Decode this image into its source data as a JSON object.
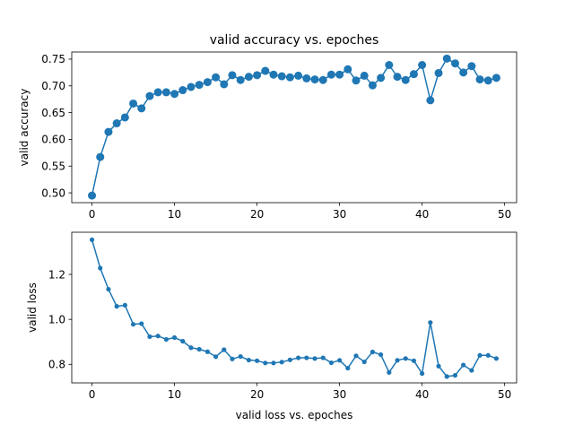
{
  "chart_data": [
    {
      "type": "line",
      "title": "valid accuracy vs. epoches",
      "xlabel": "",
      "ylabel": "valid accuracy",
      "xlim": [
        -2.45,
        51.45
      ],
      "ylim": [
        0.4817,
        0.7633
      ],
      "xticks": [
        0,
        10,
        20,
        30,
        40,
        50
      ],
      "yticks": [
        0.5,
        0.55,
        0.6,
        0.65,
        0.7,
        0.75
      ],
      "ytick_labels": [
        "0.50",
        "0.55",
        "0.60",
        "0.65",
        "0.70",
        "0.75"
      ],
      "color": "#1f77b4",
      "marker": "circle-large",
      "x": [
        0,
        1,
        2,
        3,
        4,
        5,
        6,
        7,
        8,
        9,
        10,
        11,
        12,
        13,
        14,
        15,
        16,
        17,
        18,
        19,
        20,
        21,
        22,
        23,
        24,
        25,
        26,
        27,
        28,
        29,
        30,
        31,
        32,
        33,
        34,
        35,
        36,
        37,
        38,
        39,
        40,
        41,
        42,
        43,
        44,
        45,
        46,
        47,
        48,
        49
      ],
      "values": [
        0.495,
        0.567,
        0.614,
        0.63,
        0.641,
        0.667,
        0.658,
        0.681,
        0.688,
        0.688,
        0.685,
        0.692,
        0.698,
        0.702,
        0.707,
        0.716,
        0.703,
        0.72,
        0.711,
        0.717,
        0.72,
        0.728,
        0.721,
        0.718,
        0.716,
        0.719,
        0.714,
        0.712,
        0.711,
        0.721,
        0.721,
        0.731,
        0.71,
        0.719,
        0.701,
        0.715,
        0.739,
        0.717,
        0.711,
        0.722,
        0.739,
        0.673,
        0.724,
        0.751,
        0.742,
        0.725,
        0.737,
        0.712,
        0.71,
        0.715
      ]
    },
    {
      "type": "line",
      "title": "",
      "xlabel": "valid loss vs. epoches",
      "ylabel": "valid loss",
      "xlim": [
        -2.45,
        51.45
      ],
      "ylim": [
        0.7175,
        1.3875
      ],
      "xticks": [
        0,
        10,
        20,
        30,
        40,
        50
      ],
      "yticks": [
        0.8,
        1.0,
        1.2
      ],
      "ytick_labels": [
        "0.8",
        "1.0",
        "1.2"
      ],
      "color": "#1f77b4",
      "marker": "circle-small",
      "x": [
        0,
        1,
        2,
        3,
        4,
        5,
        6,
        7,
        8,
        9,
        10,
        11,
        12,
        13,
        14,
        15,
        16,
        17,
        18,
        19,
        20,
        21,
        22,
        23,
        24,
        25,
        26,
        27,
        28,
        29,
        30,
        31,
        32,
        33,
        34,
        35,
        36,
        37,
        38,
        39,
        40,
        41,
        42,
        43,
        44,
        45,
        46,
        47,
        48,
        49
      ],
      "values": [
        1.354,
        1.228,
        1.134,
        1.058,
        1.063,
        0.978,
        0.981,
        0.923,
        0.926,
        0.911,
        0.919,
        0.903,
        0.874,
        0.867,
        0.856,
        0.834,
        0.865,
        0.824,
        0.835,
        0.819,
        0.816,
        0.806,
        0.806,
        0.81,
        0.82,
        0.829,
        0.829,
        0.826,
        0.829,
        0.807,
        0.818,
        0.783,
        0.838,
        0.811,
        0.855,
        0.843,
        0.764,
        0.818,
        0.826,
        0.816,
        0.759,
        0.986,
        0.792,
        0.746,
        0.751,
        0.797,
        0.773,
        0.84,
        0.84,
        0.826
      ]
    }
  ]
}
